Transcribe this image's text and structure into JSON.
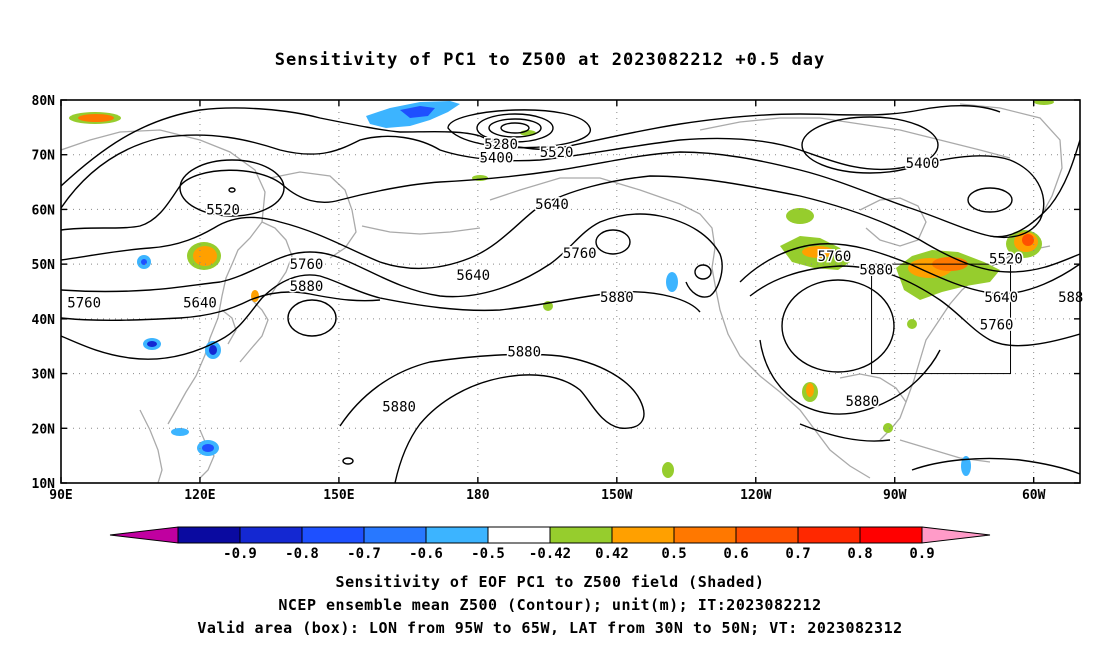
{
  "title": "Sensitivity of PC1 to Z500 at 2023082212 +0.5 day",
  "map": {
    "lon_range": [
      "90E",
      "50W"
    ],
    "lat_range": [
      "10N",
      "80N"
    ],
    "lon_ticks": [
      "90E",
      "120E",
      "150E",
      "180",
      "150W",
      "120W",
      "90W",
      "60W"
    ],
    "lat_ticks": [
      "10N",
      "20N",
      "30N",
      "40N",
      "50N",
      "60N",
      "70N",
      "80N"
    ],
    "grid": "dotted",
    "coastline_color": "#aaaaaa",
    "valid_box": {
      "lon_west": -95,
      "lon_east": -65,
      "lat_south": 30,
      "lat_north": 50
    }
  },
  "contour_labels": [
    {
      "text": "5280",
      "lon": -175,
      "lat": 72
    },
    {
      "text": "5400",
      "lon": -176,
      "lat": 69.5
    },
    {
      "text": "5520",
      "lon": -163,
      "lat": 70.5
    },
    {
      "text": "5400",
      "lon": -84,
      "lat": 68.5
    },
    {
      "text": "5520",
      "lon": 125,
      "lat": 60
    },
    {
      "text": "5640",
      "lon": -164,
      "lat": 61
    },
    {
      "text": "5520",
      "lon": -66,
      "lat": 51
    },
    {
      "text": "5760",
      "lon": 95,
      "lat": 43
    },
    {
      "text": "5640",
      "lon": 120,
      "lat": 43
    },
    {
      "text": "5760",
      "lon": 143,
      "lat": 50
    },
    {
      "text": "5880",
      "lon": 143,
      "lat": 46
    },
    {
      "text": "5640",
      "lon": 179,
      "lat": 48
    },
    {
      "text": "5760",
      "lon": -158,
      "lat": 52
    },
    {
      "text": "5880",
      "lon": -150,
      "lat": 44
    },
    {
      "text": "5760",
      "lon": -103,
      "lat": 51.5
    },
    {
      "text": "5880",
      "lon": -94,
      "lat": 49
    },
    {
      "text": "5640",
      "lon": -67,
      "lat": 44
    },
    {
      "text": "5760",
      "lon": -68,
      "lat": 39
    },
    {
      "text": "5880",
      "lon": -170,
      "lat": 34
    },
    {
      "text": "5880",
      "lon": 163,
      "lat": 24
    },
    {
      "text": "5880",
      "lon": -97,
      "lat": 25
    },
    {
      "text": "588",
      "lon": -52,
      "lat": 44
    }
  ],
  "colorbar": {
    "colors": [
      "#c000a0",
      "#0a0aa0",
      "#1428d2",
      "#1e50ff",
      "#2878ff",
      "#3cb4ff",
      "#ffffff",
      "#96cd2d",
      "#ffa000",
      "#ff7800",
      "#ff5000",
      "#ff2800",
      "#ff0000",
      "#ff9bc8"
    ],
    "labels": [
      "-0.9",
      "-0.8",
      "-0.7",
      "-0.6",
      "-0.5",
      "-0.42",
      "0.42",
      "0.5",
      "0.6",
      "0.7",
      "0.8",
      "0.9"
    ]
  },
  "footer": {
    "line1": "Sensitivity of EOF PC1 to Z500 field (Shaded)",
    "line2": "NCEP ensemble mean Z500 (Contour); unit(m); IT:2023082212",
    "line3": "Valid area (box): LON from 95W to 65W, LAT from 30N to 50N; VT: 2023082312"
  }
}
